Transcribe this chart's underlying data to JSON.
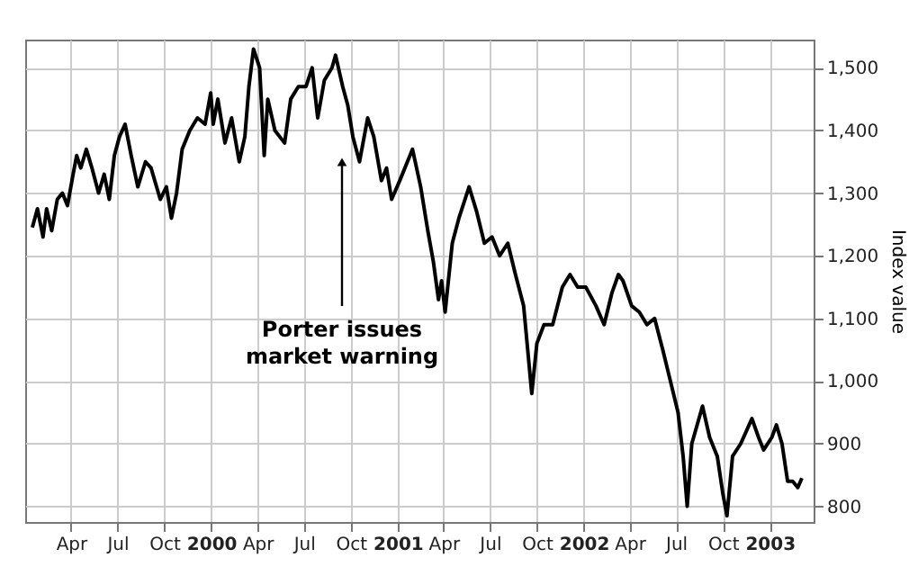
{
  "chart_data": {
    "type": "line",
    "ylabel": "Index value",
    "x": [
      "1999-01-15",
      "1999-01-25",
      "1999-02-05",
      "1999-02-12",
      "1999-02-22",
      "1999-03-05",
      "1999-03-15",
      "1999-03-25",
      "1999-04-05",
      "1999-04-12",
      "1999-04-20",
      "1999-05-01",
      "1999-05-12",
      "1999-05-25",
      "1999-06-05",
      "1999-06-15",
      "1999-06-25",
      "1999-07-05",
      "1999-07-16",
      "1999-07-28",
      "1999-08-10",
      "1999-08-25",
      "1999-09-05",
      "1999-09-23",
      "1999-10-05",
      "1999-10-15",
      "1999-10-25",
      "1999-11-05",
      "1999-11-20",
      "1999-12-05",
      "1999-12-20",
      "1999-12-31",
      "2000-01-05",
      "2000-01-14",
      "2000-01-28",
      "2000-02-10",
      "2000-02-25",
      "2000-03-07",
      "2000-03-15",
      "2000-03-24",
      "2000-04-05",
      "2000-04-14",
      "2000-04-21",
      "2000-05-05",
      "2000-05-24",
      "2000-06-05",
      "2000-06-20",
      "2000-07-05",
      "2000-07-17",
      "2000-07-28",
      "2000-08-10",
      "2000-08-25",
      "2000-09-01",
      "2000-09-15",
      "2000-09-25",
      "2000-10-05",
      "2000-10-18",
      "2000-11-03",
      "2000-11-15",
      "2000-11-30",
      "2000-12-10",
      "2000-12-20",
      "2001-01-05",
      "2001-01-30",
      "2001-02-15",
      "2001-03-01",
      "2001-03-12",
      "2001-03-22",
      "2001-03-28",
      "2001-04-04",
      "2001-04-18",
      "2001-05-01",
      "2001-05-21",
      "2001-06-05",
      "2001-06-20",
      "2001-07-05",
      "2001-07-20",
      "2001-08-05",
      "2001-08-20",
      "2001-09-05",
      "2001-09-21",
      "2001-10-01",
      "2001-10-15",
      "2001-11-01",
      "2001-11-20",
      "2001-12-05",
      "2001-12-20",
      "2002-01-05",
      "2002-01-25",
      "2002-02-10",
      "2002-02-25",
      "2002-03-10",
      "2002-03-19",
      "2002-04-05",
      "2002-04-20",
      "2002-05-05",
      "2002-05-20",
      "2002-06-05",
      "2002-06-20",
      "2002-07-05",
      "2002-07-15",
      "2002-07-23",
      "2002-08-01",
      "2002-08-22",
      "2002-09-05",
      "2002-09-20",
      "2002-10-01",
      "2002-10-09",
      "2002-10-20",
      "2002-11-05",
      "2002-11-27",
      "2002-12-10",
      "2002-12-20",
      "2003-01-05",
      "2003-01-14",
      "2003-01-25",
      "2003-02-05",
      "2003-02-15",
      "2003-02-25",
      "2003-03-05"
    ],
    "values": [
      1245,
      1275,
      1230,
      1275,
      1240,
      1290,
      1300,
      1280,
      1330,
      1360,
      1340,
      1370,
      1340,
      1300,
      1330,
      1290,
      1360,
      1390,
      1410,
      1360,
      1310,
      1350,
      1340,
      1290,
      1310,
      1260,
      1300,
      1370,
      1400,
      1420,
      1410,
      1460,
      1410,
      1450,
      1380,
      1420,
      1350,
      1390,
      1470,
      1530,
      1500,
      1360,
      1450,
      1400,
      1380,
      1450,
      1470,
      1470,
      1500,
      1420,
      1480,
      1500,
      1520,
      1470,
      1440,
      1390,
      1350,
      1420,
      1390,
      1320,
      1340,
      1290,
      1320,
      1370,
      1310,
      1240,
      1190,
      1130,
      1160,
      1110,
      1220,
      1260,
      1310,
      1270,
      1220,
      1230,
      1200,
      1220,
      1170,
      1120,
      980,
      1060,
      1090,
      1090,
      1150,
      1170,
      1150,
      1150,
      1120,
      1090,
      1140,
      1170,
      1160,
      1120,
      1110,
      1090,
      1100,
      1050,
      1000,
      950,
      880,
      800,
      900,
      960,
      910,
      880,
      820,
      785,
      880,
      900,
      940,
      910,
      890,
      910,
      930,
      900,
      840,
      840,
      830,
      845
    ],
    "color": "#000000",
    "ylim": [
      775,
      1545
    ],
    "yticks": [
      800,
      900,
      {
        "value": 1000,
        "label": "1,000"
      },
      {
        "value": 1100,
        "label": "1,100"
      },
      {
        "value": 1200,
        "label": "1,200"
      },
      {
        "value": 1300,
        "label": "1,300"
      },
      {
        "value": 1400,
        "label": "1,400"
      },
      {
        "value": 1500,
        "label": "1,500"
      }
    ],
    "xlim": [
      "1999-01-01",
      "2003-03-28"
    ],
    "xticks": [
      {
        "value": "1999-04-01",
        "label": "Apr"
      },
      {
        "value": "1999-07-01",
        "label": "Jul"
      },
      {
        "value": "1999-10-01",
        "label": "Oct"
      },
      {
        "value": "2000-01-01",
        "label": "2000"
      },
      {
        "value": "2000-04-01",
        "label": "Apr"
      },
      {
        "value": "2000-07-01",
        "label": "Jul"
      },
      {
        "value": "2000-10-01",
        "label": "Oct"
      },
      {
        "value": "2001-01-01",
        "label": "2001"
      },
      {
        "value": "2001-04-01",
        "label": "Apr"
      },
      {
        "value": "2001-07-01",
        "label": "Jul"
      },
      {
        "value": "2001-10-01",
        "label": "Oct"
      },
      {
        "value": "2002-01-01",
        "label": "2002"
      },
      {
        "value": "2002-04-01",
        "label": "Apr"
      },
      {
        "value": "2002-07-01",
        "label": "Jul"
      },
      {
        "value": "2002-10-01",
        "label": "Oct"
      },
      {
        "value": "2003-01-01",
        "label": "2003"
      }
    ],
    "grid": true,
    "line_style": "solid",
    "annotations": [
      "Porter issues market warning"
    ]
  }
}
